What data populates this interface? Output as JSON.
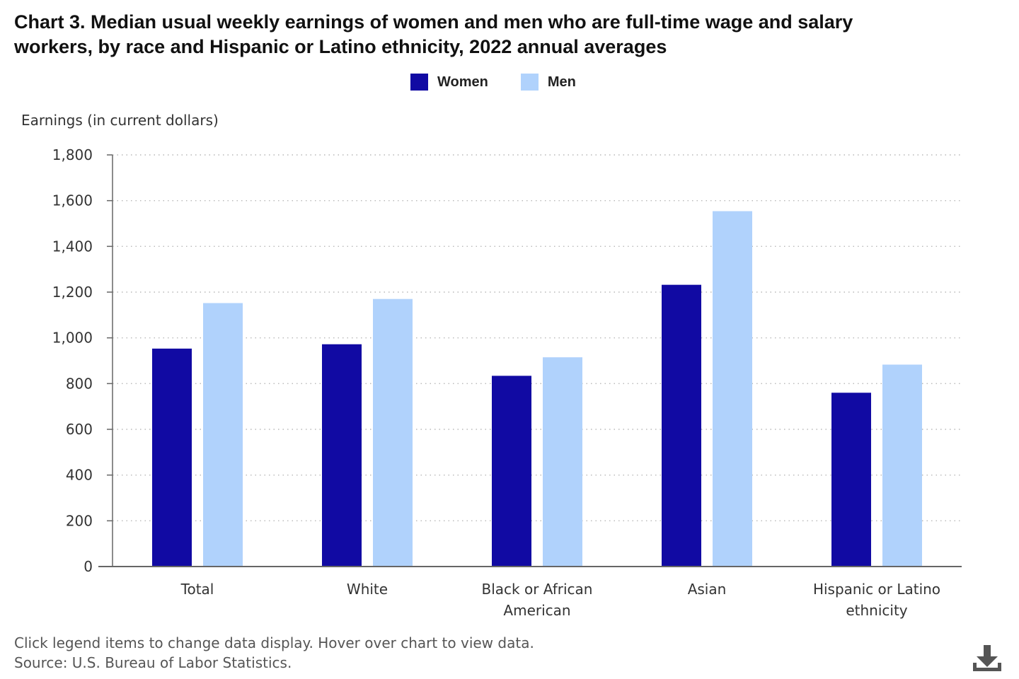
{
  "title_line1": "Chart 3. Median usual weekly earnings of women and men who are full-time wage and salary",
  "title_line2": "workers, by race and Hispanic or Latino ethnicity, 2022 annual averages",
  "footer": {
    "note": "Click legend items to change data display. Hover over chart to view data.",
    "source": "Source: U.S. Bureau of Labor Statistics."
  },
  "colors": {
    "women": "#110aa3",
    "men": "#b0d2fc",
    "axis": "#666666",
    "grid": "#b8b8b8"
  },
  "icons": {
    "download": "download-icon"
  },
  "chart_data": {
    "type": "bar",
    "ylabel": "Earnings (in current dollars)",
    "ylim": [
      0,
      1800
    ],
    "yticks": [
      0,
      200,
      400,
      600,
      800,
      1000,
      1200,
      1400,
      1600,
      1800
    ],
    "ytick_labels": [
      "0",
      "200",
      "400",
      "600",
      "800",
      "1,000",
      "1,200",
      "1,400",
      "1,600",
      "1,800"
    ],
    "grid": true,
    "legend_position": "top-center",
    "categories": [
      [
        "Total"
      ],
      [
        "White"
      ],
      [
        "Black or African",
        "American"
      ],
      [
        "Asian"
      ],
      [
        "Hispanic or Latino",
        "ethnicity"
      ]
    ],
    "series": [
      {
        "name": "Women",
        "values": [
          953,
          972,
          834,
          1232,
          760
        ]
      },
      {
        "name": "Men",
        "values": [
          1152,
          1170,
          915,
          1554,
          883
        ]
      }
    ]
  }
}
